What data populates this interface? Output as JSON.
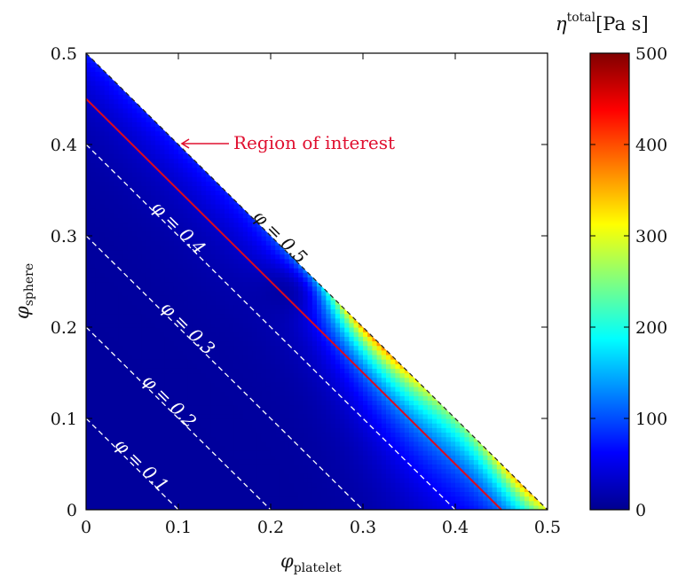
{
  "chart_data": {
    "type": "heatmap",
    "xlabel": "φ",
    "xlabel_sub": "platelet",
    "ylabel": "φ",
    "ylabel_sub": "sphere",
    "xlim": [
      0,
      0.5
    ],
    "ylim": [
      0,
      0.5
    ],
    "x_ticks": [
      "0",
      "0.1",
      "0.2",
      "0.3",
      "0.4",
      "0.5"
    ],
    "y_ticks": [
      "0",
      "0.1",
      "0.2",
      "0.3",
      "0.4",
      "0.5"
    ],
    "colorbar": {
      "label": "η",
      "label_sup": "total",
      "unit": "[Pa s]",
      "range": [
        0,
        500
      ],
      "ticks": [
        "0",
        "100",
        "200",
        "300",
        "400",
        "500"
      ],
      "colormap": "jet"
    },
    "contours": [
      {
        "phi": 0.1,
        "label": "φ = 0.1",
        "style": "dashed"
      },
      {
        "phi": 0.2,
        "label": "φ = 0.2",
        "style": "dashed"
      },
      {
        "phi": 0.3,
        "label": "φ = 0.3",
        "style": "dashed"
      },
      {
        "phi": 0.4,
        "label": "φ = 0.4",
        "style": "dashed"
      },
      {
        "phi": 0.5,
        "label": "φ = 0.5",
        "style": "dashed-black"
      }
    ],
    "region_line": {
      "phi": 0.45,
      "color": "#dc0a20"
    },
    "annotation": {
      "text": "Region of interest",
      "color": "#e01030"
    },
    "grid": false
  }
}
